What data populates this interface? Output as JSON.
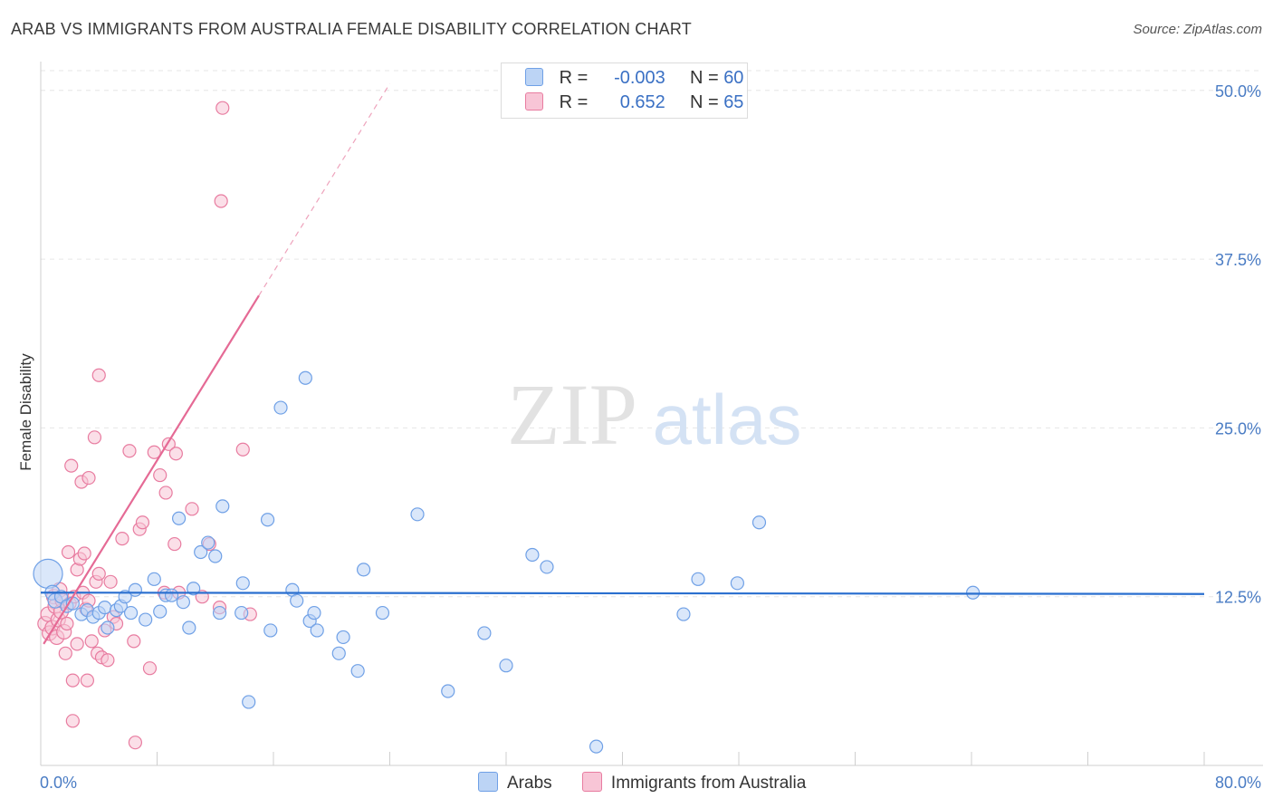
{
  "title": "ARAB VS IMMIGRANTS FROM AUSTRALIA FEMALE DISABILITY CORRELATION CHART",
  "source": "Source: ZipAtlas.com",
  "watermark": {
    "zip": "ZIP",
    "atlas": "atlas"
  },
  "legend": {
    "r_label": "R =",
    "n_label": "N =",
    "rows": [
      {
        "r": "-0.003",
        "n": "60",
        "color": "#a9c9f5"
      },
      {
        "r": "0.652",
        "n": "65",
        "color": "#f6b8cb"
      }
    ]
  },
  "bottom_legend": [
    "Arabs",
    "Immigrants from Australia"
  ],
  "chart_data": {
    "type": "scatter",
    "title": "ARAB VS IMMIGRANTS FROM AUSTRALIA FEMALE DISABILITY CORRELATION CHART",
    "xlabel": "",
    "ylabel": "Female Disability",
    "xlim": [
      0,
      80
    ],
    "ylim": [
      0,
      52
    ],
    "x_tick_labels": [
      "0.0%",
      "80.0%"
    ],
    "y_ticks": [
      12.5,
      25.0,
      37.5,
      50.0
    ],
    "y_tick_labels": [
      "12.5%",
      "25.0%",
      "37.5%",
      "50.0%"
    ],
    "series": [
      {
        "name": "Arabs",
        "color": "#6fa0e6",
        "fill": "#bcd4f5",
        "trend": {
          "x": [
            0,
            80
          ],
          "y": [
            12.8,
            12.7
          ]
        },
        "points": [
          [
            0.5,
            14.2,
            16
          ],
          [
            0.8,
            12.8,
            8
          ],
          [
            1.0,
            12.2,
            8
          ],
          [
            1.4,
            12.5,
            7
          ],
          [
            1.8,
            11.8,
            7
          ],
          [
            2.2,
            12.0,
            7
          ],
          [
            2.8,
            11.2,
            7
          ],
          [
            3.2,
            11.5,
            7
          ],
          [
            3.6,
            11.0,
            7
          ],
          [
            4.0,
            11.3,
            7
          ],
          [
            4.4,
            11.7,
            7
          ],
          [
            4.6,
            10.2,
            7
          ],
          [
            5.2,
            11.5,
            7
          ],
          [
            5.5,
            11.8,
            7
          ],
          [
            5.8,
            12.5,
            7
          ],
          [
            6.2,
            11.3,
            7
          ],
          [
            6.5,
            13.0,
            7
          ],
          [
            7.2,
            10.8,
            7
          ],
          [
            7.8,
            13.8,
            7
          ],
          [
            8.2,
            11.4,
            7
          ],
          [
            8.6,
            12.6,
            7
          ],
          [
            9.0,
            12.6,
            7
          ],
          [
            9.5,
            18.3,
            7
          ],
          [
            9.8,
            12.1,
            7
          ],
          [
            10.2,
            10.2,
            7
          ],
          [
            10.5,
            13.1,
            7
          ],
          [
            11.0,
            15.8,
            7
          ],
          [
            11.5,
            16.5,
            7
          ],
          [
            12.0,
            15.5,
            7
          ],
          [
            12.3,
            11.3,
            7
          ],
          [
            12.5,
            19.2,
            7
          ],
          [
            13.8,
            11.3,
            7
          ],
          [
            13.9,
            13.5,
            7
          ],
          [
            14.3,
            4.7,
            7
          ],
          [
            15.6,
            18.2,
            7
          ],
          [
            15.8,
            10.0,
            7
          ],
          [
            16.5,
            26.5,
            7
          ],
          [
            17.3,
            13.0,
            7
          ],
          [
            17.6,
            12.2,
            7
          ],
          [
            18.2,
            28.7,
            7
          ],
          [
            18.5,
            10.7,
            7
          ],
          [
            18.8,
            11.3,
            7
          ],
          [
            19.0,
            10.0,
            7
          ],
          [
            20.5,
            8.3,
            7
          ],
          [
            20.8,
            9.5,
            7
          ],
          [
            21.8,
            7.0,
            7
          ],
          [
            22.2,
            14.5,
            7
          ],
          [
            23.5,
            11.3,
            7
          ],
          [
            25.9,
            18.6,
            7
          ],
          [
            28.0,
            5.5,
            7
          ],
          [
            30.5,
            9.8,
            7
          ],
          [
            32.0,
            7.4,
            7
          ],
          [
            33.8,
            15.6,
            7
          ],
          [
            34.8,
            14.7,
            7
          ],
          [
            38.2,
            1.4,
            7
          ],
          [
            44.2,
            11.2,
            7
          ],
          [
            45.2,
            13.8,
            7
          ],
          [
            47.9,
            13.5,
            7
          ],
          [
            49.4,
            18.0,
            7
          ],
          [
            64.1,
            12.8,
            7
          ]
        ]
      },
      {
        "name": "Immigrants from Australia",
        "color": "#e87ca0",
        "fill": "#f8c5d6",
        "trend": {
          "x": [
            0.2,
            15.0
          ],
          "y": [
            9.0,
            34.8
          ]
        },
        "trend_dashed": {
          "x": [
            15.0,
            24.0
          ],
          "y": [
            34.8,
            50.5
          ]
        },
        "points": [
          [
            0.3,
            10.5,
            8
          ],
          [
            0.5,
            11.2,
            8
          ],
          [
            0.6,
            9.8,
            8
          ],
          [
            0.8,
            10.2,
            8
          ],
          [
            0.9,
            12.5,
            8
          ],
          [
            1.0,
            11.8,
            8
          ],
          [
            1.1,
            9.5,
            8
          ],
          [
            1.2,
            10.8,
            8
          ],
          [
            1.3,
            13.0,
            8
          ],
          [
            1.4,
            11.4,
            8
          ],
          [
            1.5,
            12.2,
            8
          ],
          [
            1.6,
            9.9,
            8
          ],
          [
            1.7,
            8.3,
            7
          ],
          [
            1.8,
            10.5,
            7
          ],
          [
            1.9,
            15.8,
            7
          ],
          [
            2.0,
            12.0,
            7
          ],
          [
            2.1,
            22.2,
            7
          ],
          [
            2.2,
            6.3,
            7
          ],
          [
            2.2,
            3.3,
            7
          ],
          [
            2.3,
            12.5,
            7
          ],
          [
            2.5,
            9.0,
            7
          ],
          [
            2.5,
            14.5,
            7
          ],
          [
            2.7,
            15.3,
            7
          ],
          [
            2.8,
            21.0,
            7
          ],
          [
            2.9,
            12.8,
            7
          ],
          [
            3.0,
            15.7,
            7
          ],
          [
            3.1,
            11.6,
            7
          ],
          [
            3.2,
            6.3,
            7
          ],
          [
            3.3,
            12.2,
            7
          ],
          [
            3.3,
            21.3,
            7
          ],
          [
            3.5,
            9.2,
            7
          ],
          [
            3.7,
            24.3,
            7
          ],
          [
            3.8,
            13.6,
            7
          ],
          [
            3.9,
            8.3,
            7
          ],
          [
            4.0,
            28.9,
            7
          ],
          [
            4.0,
            14.2,
            7
          ],
          [
            4.2,
            8.0,
            7
          ],
          [
            4.4,
            10.0,
            7
          ],
          [
            4.6,
            7.8,
            7
          ],
          [
            4.8,
            13.6,
            7
          ],
          [
            5.0,
            11.0,
            7
          ],
          [
            5.2,
            10.5,
            7
          ],
          [
            5.6,
            16.8,
            7
          ],
          [
            6.1,
            23.3,
            7
          ],
          [
            6.4,
            9.2,
            7
          ],
          [
            6.5,
            1.7,
            7
          ],
          [
            6.8,
            17.5,
            7
          ],
          [
            7.0,
            18.0,
            7
          ],
          [
            7.5,
            7.2,
            7
          ],
          [
            7.8,
            23.2,
            7
          ],
          [
            8.2,
            21.5,
            7
          ],
          [
            8.5,
            12.8,
            7
          ],
          [
            8.6,
            20.2,
            7
          ],
          [
            8.8,
            23.8,
            7
          ],
          [
            9.2,
            16.4,
            7
          ],
          [
            9.3,
            23.1,
            7
          ],
          [
            9.5,
            12.8,
            7
          ],
          [
            10.4,
            19.0,
            7
          ],
          [
            11.1,
            12.5,
            7
          ],
          [
            11.6,
            16.4,
            7
          ],
          [
            12.3,
            11.7,
            7
          ],
          [
            12.4,
            41.8,
            7
          ],
          [
            12.5,
            48.7,
            7
          ],
          [
            13.9,
            23.4,
            7
          ],
          [
            14.4,
            11.2,
            7
          ]
        ]
      }
    ]
  }
}
